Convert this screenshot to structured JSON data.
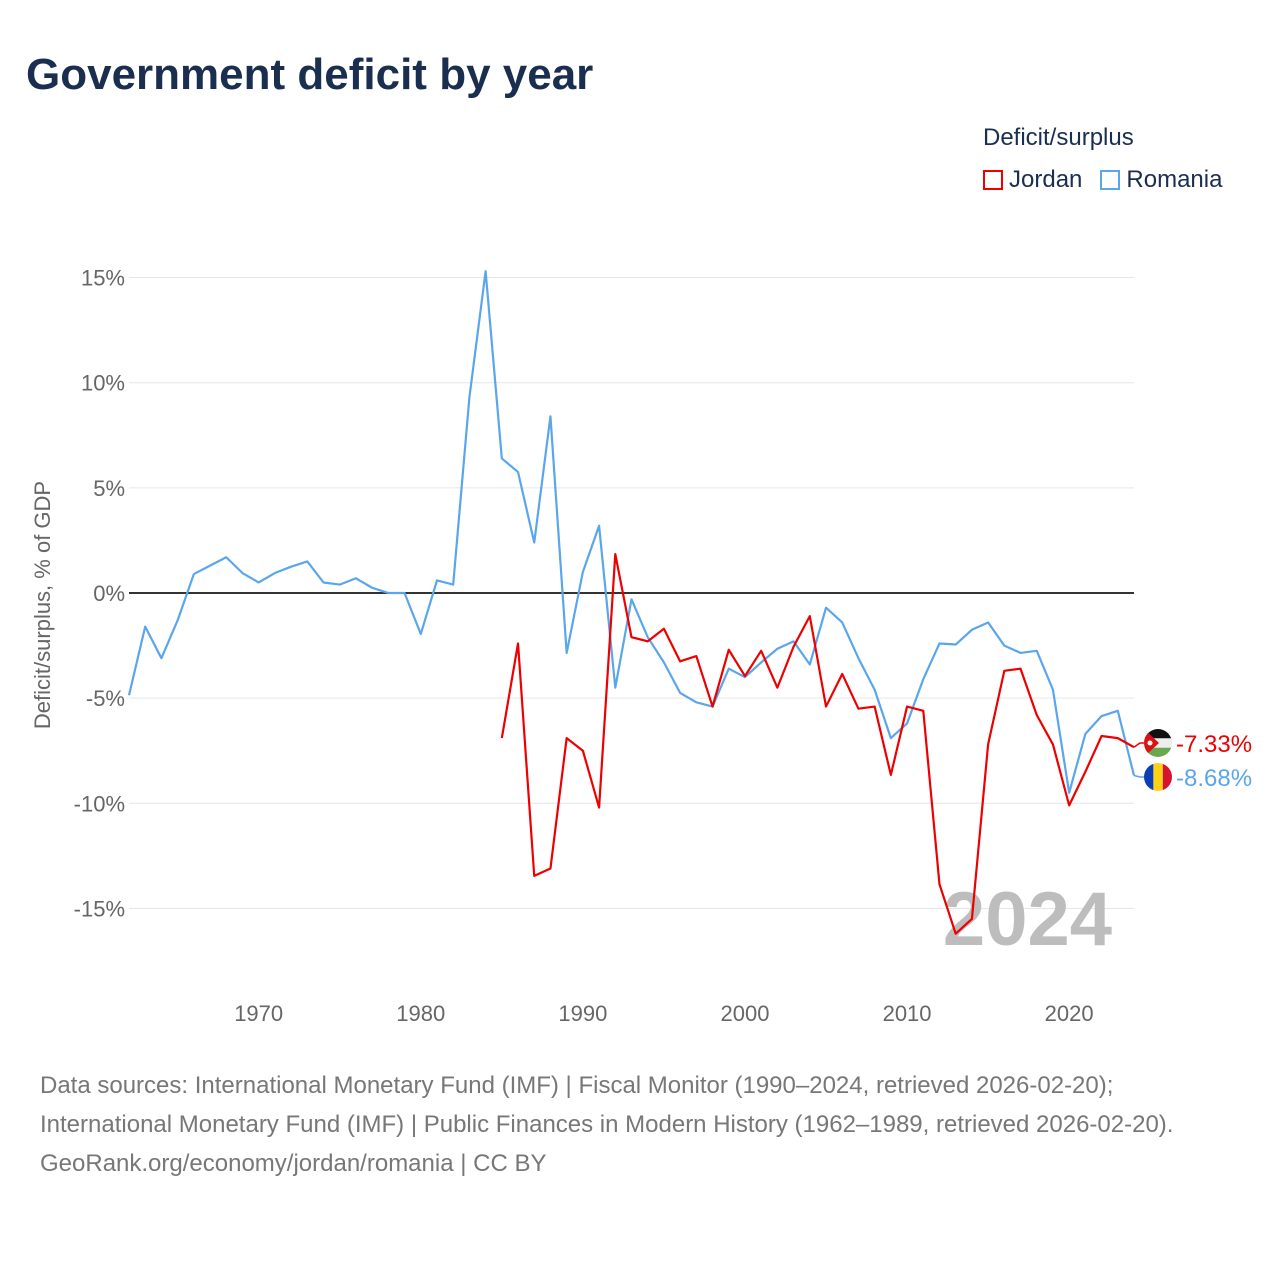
{
  "title": "Government deficit by year",
  "legend": {
    "title": "Deficit/surplus",
    "items": [
      {
        "name": "Jordan",
        "color": "#ee0000"
      },
      {
        "name": "Romania",
        "color": "#5aa6ec"
      }
    ]
  },
  "footer": {
    "sources": "Data sources: International Monetary Fund (IMF) | Fiscal Monitor (1990–2024, retrieved 2026-02-20); International Monetary Fund (IMF) | Public Finances in Modern History (1962–1989, retrieved 2026-02-20).",
    "credit": "GeoRank.org/economy/jordan/romania | CC BY"
  },
  "chart_data": {
    "type": "line",
    "title": "Government deficit by year",
    "ylabel": "Deficit/surplus, % of GDP",
    "xlabel": "",
    "ylim": [
      -17,
      16
    ],
    "xlim": [
      1962,
      2024
    ],
    "yticks": [
      15,
      10,
      5,
      0,
      -5,
      -10,
      -15
    ],
    "ytick_labels": [
      "15%",
      "10%",
      "5%",
      "0%",
      "-5%",
      "-10%",
      "-15%"
    ],
    "xticks": [
      1970,
      1980,
      1990,
      2000,
      2010,
      2020
    ],
    "xtick_labels": [
      "1970",
      "1980",
      "1990",
      "2000",
      "2010",
      "2020"
    ],
    "year_label": "2024",
    "legend_position": "top-right",
    "series": [
      {
        "name": "Jordan",
        "color": "#ee0000",
        "end_label": "-7.33%",
        "start": 1985,
        "values": [
          -6.9,
          -2.4,
          -13.45,
          -13.1,
          -6.9,
          -7.5,
          -10.2,
          1.85,
          -2.1,
          -2.3,
          -1.7,
          -3.25,
          -3.0,
          -5.4,
          -2.7,
          -3.95,
          -2.75,
          -4.5,
          -2.55,
          -1.1,
          -5.4,
          -3.85,
          -5.5,
          -5.4,
          -8.65,
          -5.4,
          -5.6,
          -13.85,
          -16.2,
          -15.5,
          -7.2,
          -3.7,
          -3.6,
          -5.8,
          -7.2,
          -10.1,
          -8.5,
          -6.8,
          -6.9,
          -7.33
        ]
      },
      {
        "name": "Romania",
        "color": "#5aa6ec",
        "end_label": "-8.68%",
        "start": 1962,
        "values": [
          -4.86,
          -1.6,
          -3.1,
          -1.3,
          0.9,
          1.3,
          1.7,
          0.95,
          0.5,
          0.95,
          1.25,
          1.5,
          0.5,
          0.4,
          0.7,
          0.25,
          0,
          0,
          -1.95,
          0.6,
          0.4,
          9.3,
          15.3,
          6.4,
          5.75,
          2.4,
          8.4,
          -2.85,
          1.0,
          3.2,
          -4.5,
          -0.3,
          -2.1,
          -3.3,
          -4.75,
          -5.2,
          -5.4,
          -3.6,
          -4.0,
          -3.3,
          -2.65,
          -2.3,
          -3.4,
          -0.7,
          -1.4,
          -3.1,
          -4.6,
          -6.9,
          -6.2,
          -4.1,
          -2.4,
          -2.45,
          -1.75,
          -1.4,
          -2.5,
          -2.85,
          -2.75,
          -4.6,
          -9.5,
          -6.7,
          -5.85,
          -5.6,
          -8.68
        ]
      }
    ]
  }
}
